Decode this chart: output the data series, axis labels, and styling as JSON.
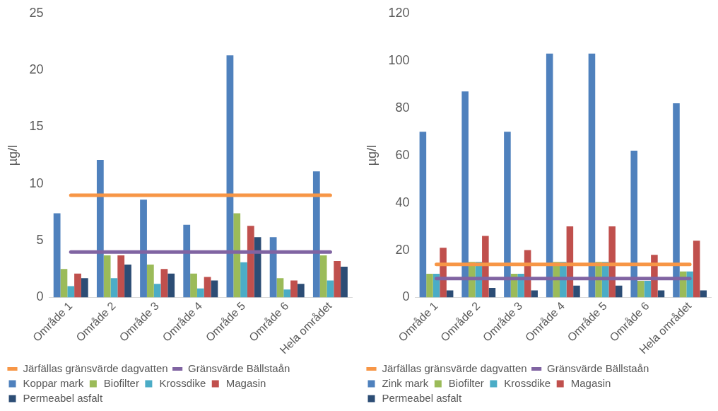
{
  "chart_data": [
    {
      "type": "bar",
      "ylabel": "µg/l",
      "categories": [
        "Område 1",
        "Område 2",
        "Område 3",
        "Område 4",
        "Område 5",
        "Område 6",
        "Hela området"
      ],
      "ylim": [
        0,
        25
      ],
      "yticks": [
        0,
        5,
        10,
        15,
        20,
        25
      ],
      "grid": false,
      "legend": "bottom",
      "series": [
        {
          "name": "Koppar mark",
          "color": "#4f81bd",
          "values": [
            7.4,
            12.1,
            8.6,
            6.4,
            21.3,
            5.3,
            11.1
          ]
        },
        {
          "name": "Biofilter",
          "color": "#9bbb59",
          "values": [
            2.5,
            3.7,
            2.9,
            2.1,
            7.4,
            1.7,
            3.7
          ]
        },
        {
          "name": "Krossdike",
          "color": "#4bacc6",
          "values": [
            1.0,
            1.7,
            1.2,
            0.8,
            3.1,
            0.7,
            1.5
          ]
        },
        {
          "name": "Magasin",
          "color": "#c0504d",
          "values": [
            2.1,
            3.7,
            2.5,
            1.8,
            6.3,
            1.5,
            3.2
          ]
        },
        {
          "name": "Permeabel asfalt",
          "color": "#2c4d75",
          "values": [
            1.7,
            2.9,
            2.1,
            1.5,
            5.3,
            1.2,
            2.7
          ]
        },
        {
          "name": "Järfällas gränsvärde dagvatten",
          "type": "line",
          "marker": "none",
          "color": "#f79646",
          "values": [
            9,
            9,
            9,
            9,
            9,
            9,
            9
          ]
        },
        {
          "name": "Gränsvärde Bällstaån",
          "type": "line",
          "marker": "none",
          "color": "#8064a2",
          "values": [
            4,
            4,
            4,
            4,
            4,
            4,
            4
          ]
        }
      ]
    },
    {
      "type": "bar",
      "ylabel": "µg/l",
      "categories": [
        "Område 1",
        "Område 2",
        "Område 3",
        "Område 4",
        "Område 5",
        "Område 6",
        "Hela området"
      ],
      "ylim": [
        0,
        120
      ],
      "yticks": [
        0,
        20,
        40,
        60,
        80,
        100,
        120
      ],
      "grid": false,
      "legend": "bottom",
      "series": [
        {
          "name": "Zink mark",
          "color": "#4f81bd",
          "values": [
            70,
            87,
            70,
            103,
            103,
            62,
            82
          ]
        },
        {
          "name": "Biofilter",
          "color": "#9bbb59",
          "values": [
            10,
            15,
            10,
            15,
            15,
            7,
            11
          ]
        },
        {
          "name": "Krossdike",
          "color": "#4bacc6",
          "values": [
            10,
            15,
            10,
            15,
            15,
            7,
            11
          ]
        },
        {
          "name": "Magasin",
          "color": "#c0504d",
          "values": [
            21,
            26,
            20,
            30,
            30,
            18,
            24
          ]
        },
        {
          "name": "Permeabel asfalt",
          "color": "#2c4d75",
          "values": [
            3,
            4,
            3,
            5,
            5,
            3,
            3
          ]
        },
        {
          "name": "Järfällas gränsvärde dagvatten",
          "type": "line",
          "marker": "none",
          "color": "#f79646",
          "values": [
            14,
            14,
            14,
            14,
            14,
            14,
            14
          ]
        },
        {
          "name": "Gränsvärde Bällstaån",
          "type": "line",
          "marker": "none",
          "color": "#8064a2",
          "values": [
            8,
            8,
            8,
            8,
            8,
            8,
            8
          ]
        }
      ]
    }
  ]
}
